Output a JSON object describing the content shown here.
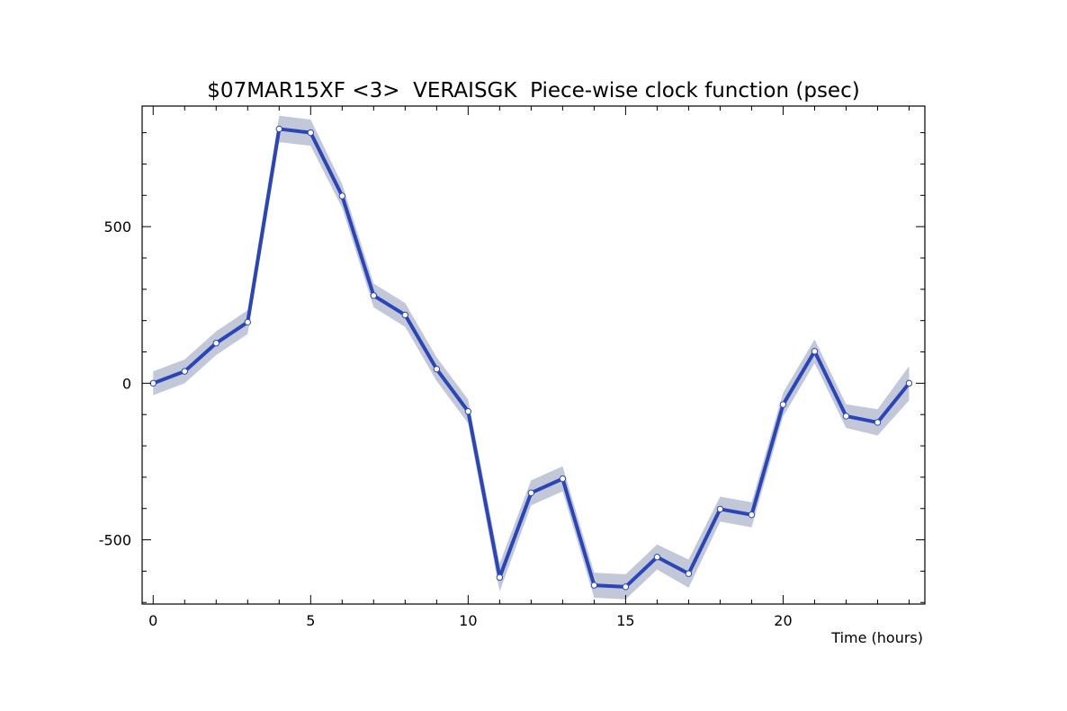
{
  "chart_data": {
    "type": "line",
    "title": "$07MAR15XF <3>  VERAISGK  Piece-wise clock function (psec)",
    "xlabel": "Time (hours)",
    "ylabel": "",
    "xlim": [
      -0.35,
      24.5
    ],
    "ylim": [
      -705,
      885
    ],
    "x_ticks": [
      0,
      5,
      10,
      15,
      20
    ],
    "x_tick_labels": [
      "0",
      "5",
      "10",
      "15",
      "20"
    ],
    "y_ticks": [
      -500,
      0,
      500
    ],
    "y_tick_labels": [
      "-500",
      "0",
      "500"
    ],
    "grid": false,
    "legend": "none",
    "series": [
      {
        "x": [
          0,
          1,
          2,
          3,
          4,
          5,
          6,
          7,
          8,
          9,
          10,
          11,
          12,
          13,
          14,
          15,
          16,
          17,
          18,
          19,
          20,
          21,
          22,
          23,
          24
        ],
        "y": [
          0,
          38,
          128,
          195,
          812,
          800,
          598,
          280,
          218,
          45,
          -90,
          -620,
          -350,
          -305,
          -645,
          -650,
          -555,
          -608,
          -402,
          -420,
          -68,
          102,
          -105,
          -125,
          0
        ],
        "band": [
          38,
          38,
          38,
          38,
          42,
          42,
          38,
          38,
          38,
          38,
          38,
          45,
          40,
          40,
          40,
          40,
          40,
          45,
          40,
          40,
          38,
          38,
          38,
          42,
          55
        ],
        "color": "#2a45b8",
        "band_color": "#c3c8d9"
      }
    ]
  }
}
